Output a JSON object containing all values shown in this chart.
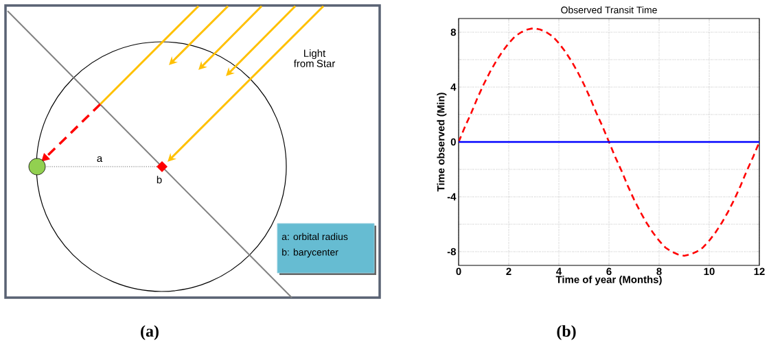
{
  "chart_data": [
    {
      "type": "other",
      "annotations": [
        "Light from Star",
        "a",
        "b",
        "a: orbital radius",
        "b: barycenter",
        "(a)"
      ]
    },
    {
      "type": "line",
      "title": "Observed Transit Time",
      "xlabel": "Time of year (Months)",
      "ylabel": "Time observed (Min)",
      "xlim": [
        0,
        12
      ],
      "ylim": [
        -9,
        9
      ],
      "xticks": [
        0,
        2,
        4,
        6,
        8,
        10,
        12
      ],
      "yticks": [
        -8,
        {
          "value": -6,
          "label": null
        },
        -4,
        {
          "value": -2,
          "label": null
        },
        0,
        {
          "value": 2,
          "label": null
        },
        4,
        {
          "value": 6,
          "label": null
        },
        8
      ],
      "grid": true,
      "annotations": [
        "(b)"
      ],
      "series": [
        {
          "color": "#ff0000",
          "line_style": "dashed",
          "x": [
            0,
            0.25,
            0.5,
            0.75,
            1,
            1.25,
            1.5,
            1.75,
            2,
            2.25,
            2.5,
            2.75,
            3,
            3.25,
            3.5,
            3.75,
            4,
            4.25,
            4.5,
            4.75,
            5,
            5.25,
            5.5,
            5.75,
            6,
            6.25,
            6.5,
            6.75,
            7,
            7.25,
            7.5,
            7.75,
            8,
            8.25,
            8.5,
            8.75,
            9,
            9.25,
            9.5,
            9.75,
            10,
            10.25,
            10.5,
            10.75,
            11,
            11.25,
            11.5,
            11.75,
            12
          ],
          "values": [
            0,
            1.1,
            2.1,
            3.2,
            4.2,
            5.1,
            5.9,
            6.6,
            7.2,
            7.7,
            8.0,
            8.2,
            8.3,
            8.2,
            8.0,
            7.7,
            7.2,
            6.6,
            5.9,
            5.1,
            4.2,
            3.2,
            2.1,
            1.1,
            0,
            -1.1,
            -2.1,
            -3.2,
            -4.2,
            -5.1,
            -5.9,
            -6.6,
            -7.2,
            -7.7,
            -8.0,
            -8.2,
            -8.3,
            -8.2,
            -8.0,
            -7.7,
            -7.2,
            -6.6,
            -5.9,
            -5.1,
            -4.2,
            -3.2,
            -2.1,
            -1.1,
            0
          ]
        },
        {
          "color": "#0000ff",
          "line_style": "solid",
          "x": [
            0,
            12
          ],
          "values": [
            0,
            0
          ]
        }
      ]
    }
  ]
}
